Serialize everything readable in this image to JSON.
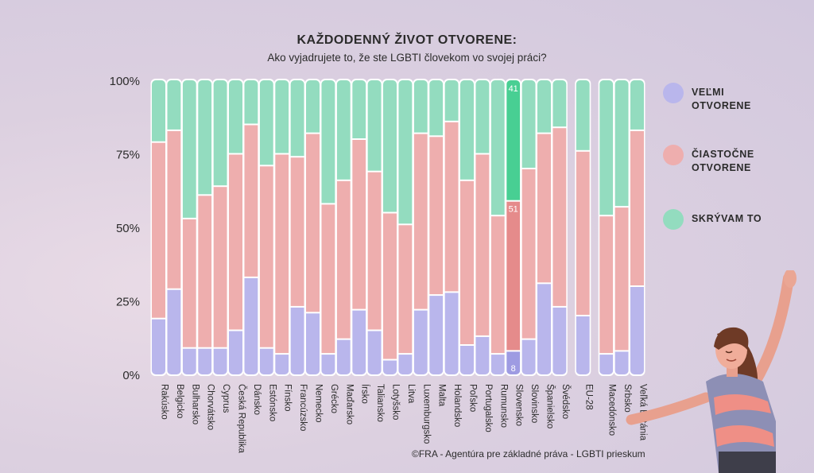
{
  "title": "KAŽDODENNÝ ŽIVOT OTVORENE:",
  "subtitle": "Ako vyjadrujete to, že ste LGBTI človekom vo svojej práci?",
  "source": "©FRA - Agentúra pre základné práva - LGBTI prieskum",
  "legend": [
    {
      "key": "very_open",
      "label": "VEĽMI OTVORENE",
      "color": "#b9b6ec"
    },
    {
      "key": "partly_open",
      "label": "ČIASTOČNE OTVORENE",
      "color": "#eeaeae"
    },
    {
      "key": "hide",
      "label": "SKRÝVAM TO",
      "color": "#93dcbf"
    }
  ],
  "chart_data": {
    "type": "bar",
    "stacked": true,
    "ylim": [
      0,
      100
    ],
    "yticks": [
      "0%",
      "25%",
      "50%",
      "75%",
      "100%"
    ],
    "highlight_colors": {
      "very_open": "#9e9be2",
      "partly_open": "#e58b8b",
      "hide": "#48cf93"
    },
    "categories": [
      "Rakúsko",
      "Belgicko",
      "Bulharsko",
      "Chorvátsko",
      "Cyprus",
      "Česká Republika",
      "Dánsko",
      "Estónsko",
      "Fínsko",
      "Francúzsko",
      "Nemecko",
      "Grécko",
      "Maďarsko",
      "Írsko",
      "Taliansko",
      "Lotyšsko",
      "Litva",
      "Luxemburgsko",
      "Malta",
      "Holandsko",
      "Poľsko",
      "Portugalsko",
      "Rumunsko",
      "Slovensko",
      "Slovinsko",
      "Španielsko",
      "Švédsko",
      "EU-28",
      "Macedónsko",
      "Srbsko",
      "Veľká Británia"
    ],
    "group_breaks_after": [
      "Švédsko",
      "EU-28"
    ],
    "highlight_category": "Slovensko",
    "series": [
      {
        "name": "VEĽMI OTVORENE",
        "key": "very_open",
        "values": [
          19,
          29,
          9,
          9,
          9,
          15,
          33,
          9,
          7,
          23,
          21,
          7,
          12,
          22,
          15,
          5,
          7,
          22,
          27,
          28,
          10,
          13,
          7,
          8,
          12,
          31,
          23,
          20,
          7,
          8,
          30
        ]
      },
      {
        "name": "ČIASTOČNE OTVORENE",
        "key": "partly_open",
        "values": [
          60,
          54,
          44,
          52,
          55,
          60,
          52,
          62,
          68,
          51,
          61,
          51,
          54,
          58,
          54,
          50,
          44,
          60,
          54,
          58,
          56,
          62,
          47,
          51,
          58,
          51,
          61,
          56,
          47,
          49,
          53
        ]
      },
      {
        "name": "SKRÝVAM TO",
        "key": "hide",
        "values": [
          21,
          17,
          47,
          39,
          36,
          25,
          15,
          29,
          25,
          26,
          18,
          42,
          34,
          20,
          31,
          45,
          49,
          18,
          19,
          14,
          34,
          25,
          46,
          41,
          30,
          18,
          16,
          24,
          46,
          43,
          17
        ]
      }
    ],
    "data_labels": [
      {
        "category": "Slovensko",
        "series": "very_open",
        "text": "8"
      },
      {
        "category": "Slovensko",
        "series": "partly_open",
        "text": "51"
      },
      {
        "category": "Slovensko",
        "series": "hide",
        "text": "41"
      }
    ]
  }
}
